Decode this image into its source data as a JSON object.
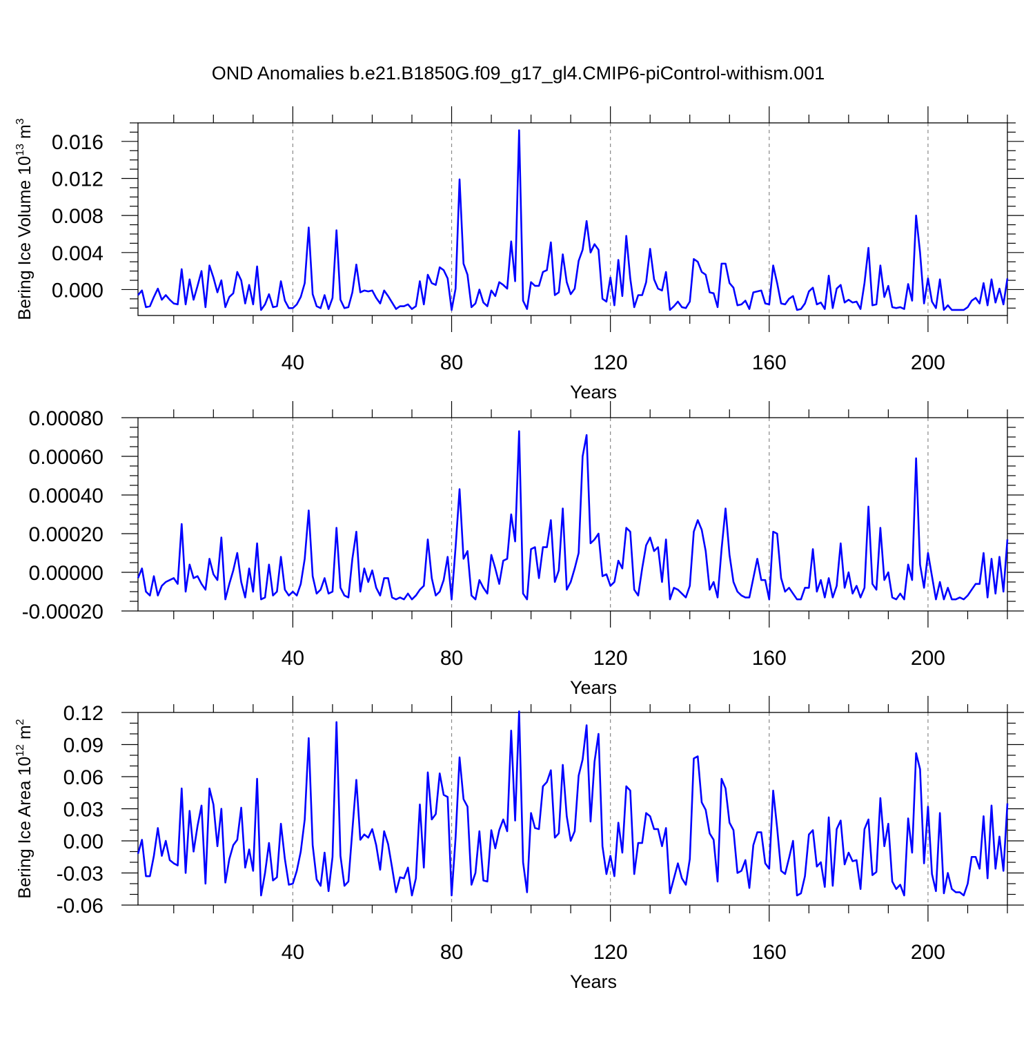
{
  "title": "OND Anomalies b.e21.B1850G.f09_g17_gl4.CMIP6-piControl-withism.001",
  "line_color": "#0000ff",
  "chart_data": [
    {
      "type": "line",
      "ylabel_main": "Bering Ice Volume 10",
      "ylabel_sup": "13",
      "ylabel_unit": " m",
      "ylabel_unit_sup": "3",
      "xlabel": "Years",
      "xlim": [
        1,
        220
      ],
      "ylim": [
        -0.0028,
        0.018
      ],
      "xticks": [
        40,
        80,
        120,
        160,
        200
      ],
      "xtick_labels": [
        "40",
        "80",
        "120",
        "160",
        "200"
      ],
      "yticks": [
        0.0,
        0.004,
        0.008,
        0.012,
        0.016
      ],
      "ytick_labels": [
        "0.000",
        "0.004",
        "0.008",
        "0.012",
        "0.016"
      ],
      "yminor_step": 0.001,
      "x_start": 1,
      "values": [
        -0.0006,
        -0.0001,
        -0.0019,
        -0.0018,
        -0.0008,
        0.0001,
        -0.0011,
        -0.0006,
        -0.0011,
        -0.0015,
        -0.0016,
        0.0022,
        -0.0016,
        0.0011,
        -0.0011,
        0.0004,
        0.002,
        -0.0019,
        0.0026,
        0.0013,
        -0.0003,
        0.001,
        -0.0019,
        -0.0008,
        -0.0004,
        0.0019,
        0.001,
        -0.0015,
        0.0005,
        -0.0016,
        0.0025,
        -0.0022,
        -0.0016,
        -0.0005,
        -0.0019,
        -0.0018,
        0.0009,
        -0.0012,
        -0.002,
        -0.002,
        -0.0016,
        -0.0008,
        0.0007,
        0.0067,
        -0.0005,
        -0.0018,
        -0.002,
        -0.0006,
        -0.0021,
        -0.0009,
        0.0064,
        -0.0011,
        -0.002,
        -0.0019,
        -0.0003,
        0.0027,
        -0.0003,
        -0.0001,
        -0.0002,
        -0.0001,
        -0.0009,
        -0.0015,
        -0.0001,
        -0.0007,
        -0.0014,
        -0.0021,
        -0.0018,
        -0.0018,
        -0.0016,
        -0.0021,
        -0.0018,
        0.0009,
        -0.0016,
        0.0016,
        0.0007,
        0.0005,
        0.0024,
        0.0021,
        0.0012,
        -0.0022,
        0.0001,
        0.0119,
        0.0028,
        0.0016,
        -0.0019,
        -0.0015,
        0.0,
        -0.0014,
        -0.0018,
        -0.0001,
        -0.0007,
        0.0008,
        0.0005,
        0.0001,
        0.0052,
        0.0009,
        0.0172,
        -0.0012,
        -0.0021,
        0.0008,
        0.0004,
        0.0004,
        0.0019,
        0.0021,
        0.0051,
        -0.0006,
        -0.0003,
        0.0038,
        0.0008,
        -0.0005,
        0.0001,
        0.0031,
        0.0043,
        0.0074,
        0.004,
        0.0049,
        0.0043,
        -0.001,
        -0.0013,
        0.0013,
        -0.0017,
        0.0032,
        -0.0007,
        0.0058,
        0.0012,
        -0.0019,
        -0.0006,
        -0.0006,
        0.0008,
        0.0044,
        0.0011,
        0.0001,
        -0.0001,
        0.0019,
        -0.0022,
        -0.0018,
        -0.0013,
        -0.0019,
        -0.002,
        -0.0013,
        0.0033,
        0.003,
        0.0019,
        0.0016,
        -0.0003,
        -0.0004,
        -0.0019,
        0.0028,
        0.0028,
        0.0007,
        0.0002,
        -0.0017,
        -0.0016,
        -0.0012,
        -0.0021,
        -0.0003,
        -0.0002,
        -0.0001,
        -0.0015,
        -0.0016,
        0.0026,
        0.0007,
        -0.0015,
        -0.0016,
        -0.001,
        -0.0007,
        -0.0022,
        -0.0021,
        -0.0015,
        -0.0002,
        0.0002,
        -0.0016,
        -0.0014,
        -0.0021,
        0.0015,
        -0.002,
        0.0001,
        0.0005,
        -0.0014,
        -0.0011,
        -0.0014,
        -0.0013,
        -0.0021,
        0.0007,
        0.0045,
        -0.0017,
        -0.0016,
        0.0026,
        -0.0008,
        0.0004,
        -0.0019,
        -0.002,
        -0.0019,
        -0.0021,
        0.0006,
        -0.0012,
        0.008,
        0.004,
        -0.0015,
        0.0012,
        -0.0013,
        -0.002,
        0.0011,
        -0.0022,
        -0.0017,
        -0.0022,
        -0.0022,
        -0.0022,
        -0.0022,
        -0.0019,
        -0.0012,
        -0.0009,
        -0.0015,
        0.0007,
        -0.0017,
        0.0011,
        -0.0014,
        0.0001,
        -0.0016,
        0.0012
      ]
    },
    {
      "type": "line",
      "ylabel_main": "",
      "ylabel_sup": "",
      "ylabel_unit": "",
      "ylabel_unit_sup": "",
      "xlabel": "Years",
      "xlim": [
        1,
        220
      ],
      "ylim": [
        -0.0002,
        0.0008
      ],
      "xticks": [
        40,
        80,
        120,
        160,
        200
      ],
      "xtick_labels": [
        "40",
        "80",
        "120",
        "160",
        "200"
      ],
      "yticks": [
        -0.0002,
        0.0,
        0.0002,
        0.0004,
        0.0006,
        0.0008
      ],
      "ytick_labels": [
        "-0.00020",
        "0.00000",
        "0.00020",
        "0.00040",
        "0.00060",
        "0.00080"
      ],
      "yminor_step": 5e-05,
      "x_start": 1,
      "values": [
        -3e-05,
        2e-05,
        -0.0001,
        -0.00012,
        -2e-05,
        -0.00012,
        -7e-05,
        -5e-05,
        -4e-05,
        -3e-05,
        -6e-05,
        0.00025,
        -0.0001,
        4e-05,
        -3e-05,
        -2e-05,
        -6e-05,
        -9e-05,
        7e-05,
        -1e-05,
        -4e-05,
        0.00018,
        -0.00014,
        -6e-05,
        1e-05,
        0.0001,
        -5e-05,
        -0.00013,
        2e-05,
        -0.0001,
        0.00015,
        -0.00014,
        -0.00013,
        4e-05,
        -0.00012,
        -0.0001,
        8e-05,
        -9e-05,
        -0.00012,
        -0.0001,
        -0.00012,
        -6e-05,
        7e-05,
        0.00032,
        -2e-05,
        -0.00011,
        -9e-05,
        -3e-05,
        -0.00011,
        -0.0001,
        0.00023,
        -8e-05,
        -0.00012,
        -0.00013,
        7e-05,
        0.00021,
        -0.0001,
        2e-05,
        -5e-05,
        1e-05,
        -8e-05,
        -0.00012,
        -3e-05,
        -3e-05,
        -0.00013,
        -0.00014,
        -0.00013,
        -0.00014,
        -0.00011,
        -0.00014,
        -0.00012,
        -9e-05,
        -7e-05,
        0.00017,
        -3e-05,
        -0.00012,
        -0.0001,
        -4e-05,
        8e-05,
        -0.00014,
        0.00013,
        0.00043,
        7e-05,
        0.00011,
        -0.00012,
        -0.00014,
        -4e-05,
        -8e-05,
        -0.00011,
        9e-05,
        2e-05,
        -6e-05,
        6e-05,
        7e-05,
        0.0003,
        0.00016,
        0.00073,
        -0.00011,
        -0.00014,
        0.00012,
        0.00013,
        -3e-05,
        0.00013,
        0.00013,
        0.00027,
        -5e-05,
        1e-05,
        0.00033,
        -9e-05,
        -5e-05,
        2e-05,
        0.0001,
        0.0006,
        0.00071,
        0.00015,
        0.00017,
        0.0002,
        -2e-05,
        -1e-05,
        -7e-05,
        -5e-05,
        6e-05,
        2e-05,
        0.00023,
        0.00021,
        -9e-05,
        -0.00012,
        2e-05,
        0.00014,
        0.00018,
        0.00011,
        0.00013,
        -5e-05,
        0.00017,
        -0.00014,
        -8e-05,
        -9e-05,
        -0.00011,
        -0.00013,
        -7e-05,
        0.00021,
        0.00027,
        0.00022,
        0.00011,
        -9e-05,
        -5e-05,
        -0.00013,
        0.00012,
        0.00033,
        9e-05,
        -5e-05,
        -0.0001,
        -0.00012,
        -0.00013,
        -0.00013,
        -3e-05,
        7e-05,
        -4e-05,
        -4e-05,
        -0.00014,
        0.00021,
        0.0002,
        -3e-05,
        -0.0001,
        -8e-05,
        -0.00011,
        -0.00014,
        -0.00014,
        -8e-05,
        -8e-05,
        0.00012,
        -0.0001,
        -4e-05,
        -0.00013,
        -3e-05,
        -0.00013,
        -7e-05,
        0.00015,
        -8e-05,
        0.0,
        -0.00011,
        -7e-05,
        -0.00013,
        -8e-05,
        0.00034,
        -6e-05,
        -9e-05,
        0.00023,
        -4e-05,
        0.0,
        -0.00013,
        -0.00014,
        -0.00011,
        -0.00014,
        4e-05,
        -4e-05,
        0.00059,
        4e-05,
        -8e-05,
        0.0001,
        -2e-05,
        -0.00014,
        -5e-05,
        -0.00014,
        -8e-05,
        -0.00014,
        -0.00014,
        -0.00013,
        -0.00014,
        -0.00012,
        -9e-05,
        -6e-05,
        -6e-05,
        0.0001,
        -0.00013,
        7e-05,
        -0.00011,
        8e-05,
        -0.0001,
        0.00017
      ]
    },
    {
      "type": "line",
      "ylabel_main": "Bering Ice Area 10",
      "ylabel_sup": "12",
      "ylabel_unit": " m",
      "ylabel_unit_sup": "2",
      "xlabel": "Years",
      "xlim": [
        1,
        220
      ],
      "ylim": [
        -0.06,
        0.12
      ],
      "xticks": [
        40,
        80,
        120,
        160,
        200
      ],
      "xtick_labels": [
        "40",
        "80",
        "120",
        "160",
        "200"
      ],
      "yticks": [
        -0.06,
        -0.03,
        0.0,
        0.03,
        0.06,
        0.09,
        0.12
      ],
      "ytick_labels": [
        "-0.06",
        "-0.03",
        "0.00",
        "0.03",
        "0.06",
        "0.09",
        "0.12"
      ],
      "yminor_step": 0.01,
      "x_start": 1,
      "values": [
        -0.012,
        0.001,
        -0.033,
        -0.033,
        -0.014,
        0.012,
        -0.014,
        0.0,
        -0.018,
        -0.021,
        -0.023,
        0.049,
        -0.03,
        0.028,
        -0.01,
        0.014,
        0.033,
        -0.04,
        0.049,
        0.034,
        -0.005,
        0.03,
        -0.039,
        -0.017,
        -0.004,
        0.001,
        0.031,
        -0.025,
        -0.008,
        -0.028,
        0.058,
        -0.051,
        -0.03,
        -0.002,
        -0.037,
        -0.034,
        0.016,
        -0.017,
        -0.041,
        -0.04,
        -0.028,
        -0.01,
        0.02,
        0.096,
        -0.004,
        -0.036,
        -0.042,
        -0.011,
        -0.047,
        -0.015,
        0.111,
        -0.014,
        -0.042,
        -0.038,
        0.01,
        0.057,
        0.001,
        0.006,
        0.003,
        0.011,
        -0.004,
        -0.027,
        0.009,
        -0.003,
        -0.025,
        -0.048,
        -0.034,
        -0.035,
        -0.025,
        -0.051,
        -0.035,
        0.034,
        -0.025,
        0.064,
        0.02,
        0.025,
        0.063,
        0.043,
        0.041,
        -0.051,
        0.003,
        0.078,
        0.039,
        0.032,
        -0.041,
        -0.03,
        0.009,
        -0.037,
        -0.038,
        0.01,
        -0.007,
        0.01,
        0.02,
        0.009,
        0.103,
        0.019,
        0.121,
        -0.02,
        -0.048,
        0.026,
        0.012,
        0.011,
        0.051,
        0.055,
        0.066,
        0.003,
        0.007,
        0.071,
        0.023,
        0.0,
        0.009,
        0.061,
        0.076,
        0.108,
        0.018,
        0.074,
        0.1,
        -0.005,
        -0.031,
        -0.014,
        -0.033,
        0.017,
        -0.011,
        0.051,
        0.047,
        -0.031,
        -0.002,
        -0.002,
        0.026,
        0.023,
        0.011,
        0.011,
        -0.005,
        0.012,
        -0.049,
        -0.035,
        -0.021,
        -0.035,
        -0.041,
        -0.017,
        0.077,
        0.079,
        0.036,
        0.029,
        0.007,
        0.001,
        -0.038,
        0.058,
        0.049,
        0.017,
        0.01,
        -0.03,
        -0.028,
        -0.018,
        -0.044,
        -0.004,
        0.008,
        0.008,
        -0.021,
        -0.026,
        0.047,
        0.012,
        -0.028,
        -0.031,
        -0.016,
        0.0,
        -0.051,
        -0.049,
        -0.033,
        0.006,
        0.01,
        -0.024,
        -0.02,
        -0.043,
        0.022,
        -0.042,
        0.011,
        0.019,
        -0.022,
        -0.011,
        -0.019,
        -0.018,
        -0.045,
        0.011,
        0.02,
        -0.032,
        -0.029,
        0.04,
        -0.005,
        0.016,
        -0.038,
        -0.045,
        -0.041,
        -0.051,
        0.021,
        -0.011,
        0.082,
        0.067,
        -0.021,
        0.032,
        -0.031,
        -0.047,
        0.026,
        -0.049,
        -0.03,
        -0.045,
        -0.048,
        -0.048,
        -0.051,
        -0.04,
        -0.015,
        -0.015,
        -0.026,
        0.023,
        -0.035,
        0.033,
        -0.026,
        0.004,
        -0.028,
        0.035
      ]
    }
  ]
}
